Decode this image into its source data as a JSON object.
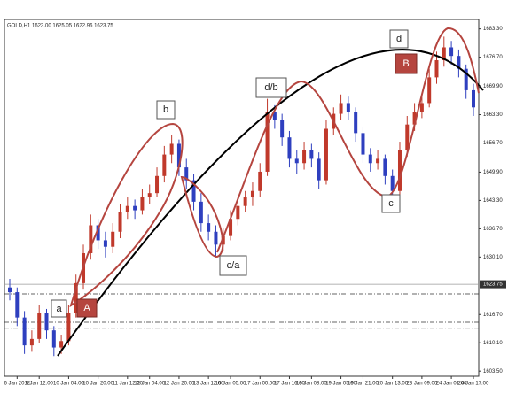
{
  "chart_data": {
    "type": "candlestick",
    "title": "GOLD,H1  1623.00 1625.05 1622.96 1623.75",
    "up_color": "#c0392b",
    "down_color": "#2e3fbf",
    "ylim": [
      1602.3,
      1685.5
    ],
    "yticks": [
      {
        "value": 1683.3,
        "label": "1683.30"
      },
      {
        "value": 1676.7,
        "label": "1676.70"
      },
      {
        "value": 1669.9,
        "label": "1669.90"
      },
      {
        "value": 1663.3,
        "label": "1663.30"
      },
      {
        "value": 1656.7,
        "label": "1656.70"
      },
      {
        "value": 1649.9,
        "label": "1649.90"
      },
      {
        "value": 1643.3,
        "label": "1643.30"
      },
      {
        "value": 1636.7,
        "label": "1636.70"
      },
      {
        "value": 1630.1,
        "label": "1630.10"
      },
      {
        "value": 1616.7,
        "label": "1616.70"
      },
      {
        "value": 1610.1,
        "label": "1610.10"
      },
      {
        "value": 1603.5,
        "label": "1603.50"
      }
    ],
    "current_price": 1623.75,
    "order_levels": [
      1621.5,
      1614.9,
      1613.5
    ],
    "categories": [
      null,
      "6 Jan 2012",
      null,
      null,
      "9 Jan 12:00",
      null,
      null,
      null,
      "10 Jan 04:00",
      null,
      null,
      null,
      "10 Jan 20:00",
      null,
      null,
      null,
      "11 Jan 12:00",
      null,
      null,
      "12 Jan 04:00",
      null,
      null,
      null,
      "12 Jan 20:00",
      null,
      null,
      null,
      "13 Jan 12:00",
      null,
      null,
      "16 Jan 05:00",
      null,
      null,
      null,
      "17 Jan 00:00",
      null,
      null,
      null,
      "17 Jan 16:00",
      null,
      null,
      "18 Jan 08:00",
      null,
      null,
      null,
      "19 Jan 05:00",
      null,
      null,
      "19 Jan 21:00",
      null,
      null,
      null,
      "20 Jan 13:00",
      null,
      null,
      null,
      "23 Jan 09:00",
      null,
      null,
      null,
      "24 Jan 01:00",
      null,
      null,
      "24 Jan 17:00"
    ],
    "open": [
      1623,
      1621.9,
      1616,
      1609.5,
      1611,
      1617,
      1613,
      1609,
      1610.5,
      1617,
      1624,
      1631,
      1637.5,
      1634,
      1632.5,
      1636,
      1640.5,
      1642,
      1641,
      1644,
      1645,
      1649,
      1654,
      1656.5,
      1651,
      1648,
      1643,
      1638,
      1636,
      1633,
      1635,
      1639,
      1642,
      1644,
      1645.5,
      1650,
      1664,
      1662,
      1658,
      1653,
      1652,
      1655,
      1653,
      1648,
      1660,
      1663.5,
      1666,
      1664,
      1659,
      1654,
      1652,
      1653,
      1649,
      1645.5,
      1655,
      1661,
      1664,
      1666,
      1672,
      1676,
      1679,
      1677,
      1674,
      1669
    ],
    "high": [
      1625,
      1623,
      1617.5,
      1613,
      1619,
      1618,
      1614,
      1612,
      1619,
      1626,
      1633,
      1640,
      1639,
      1636,
      1638,
      1642.5,
      1644,
      1643.5,
      1646,
      1647,
      1651,
      1656,
      1658.5,
      1657.5,
      1653,
      1649.5,
      1645,
      1640,
      1637.5,
      1637,
      1641,
      1644,
      1645.5,
      1647.5,
      1652,
      1667,
      1665.5,
      1663.5,
      1659.5,
      1655,
      1657,
      1656.5,
      1654.5,
      1662,
      1665,
      1668,
      1667.5,
      1665,
      1660.5,
      1655.5,
      1655,
      1654,
      1650.5,
      1657,
      1663,
      1666,
      1668,
      1674,
      1678,
      1681.5,
      1680.5,
      1678.5,
      1675,
      1670.5
    ],
    "low": [
      1620,
      1614,
      1607.5,
      1608,
      1610,
      1611,
      1607,
      1607.5,
      1609.5,
      1616,
      1622.5,
      1629.5,
      1632,
      1630,
      1631,
      1634.5,
      1639,
      1639,
      1640,
      1642.5,
      1644,
      1647.5,
      1652,
      1649,
      1646,
      1641,
      1636,
      1634,
      1630,
      1631.5,
      1634,
      1637.5,
      1640.5,
      1642,
      1644,
      1649,
      1660,
      1656,
      1651,
      1649.5,
      1650.5,
      1651,
      1646,
      1647,
      1658.5,
      1662,
      1662,
      1657,
      1652,
      1650,
      1650.5,
      1647,
      1644,
      1644.5,
      1653.5,
      1659.5,
      1662.5,
      1665,
      1670.5,
      1674.5,
      1675,
      1672,
      1667,
      1663
    ],
    "close": [
      1621.9,
      1616,
      1609.5,
      1611,
      1617,
      1613,
      1609,
      1610.5,
      1617,
      1624,
      1631,
      1637.5,
      1634,
      1632.5,
      1636,
      1640.5,
      1642,
      1641,
      1644,
      1645,
      1649,
      1654,
      1656.5,
      1651,
      1648,
      1643,
      1638,
      1636,
      1633,
      1635,
      1639,
      1642,
      1644,
      1645.5,
      1650,
      1664,
      1662,
      1658,
      1653,
      1652,
      1655,
      1653,
      1648,
      1660,
      1663.5,
      1666,
      1664,
      1659,
      1654,
      1652,
      1653,
      1649,
      1645.5,
      1655,
      1661,
      1664,
      1666,
      1672,
      1676,
      1679,
      1677,
      1674,
      1669,
      1665
    ],
    "annotations": [
      "a",
      "A",
      "b",
      "c/a",
      "d/b",
      "d",
      "B",
      "c"
    ]
  }
}
